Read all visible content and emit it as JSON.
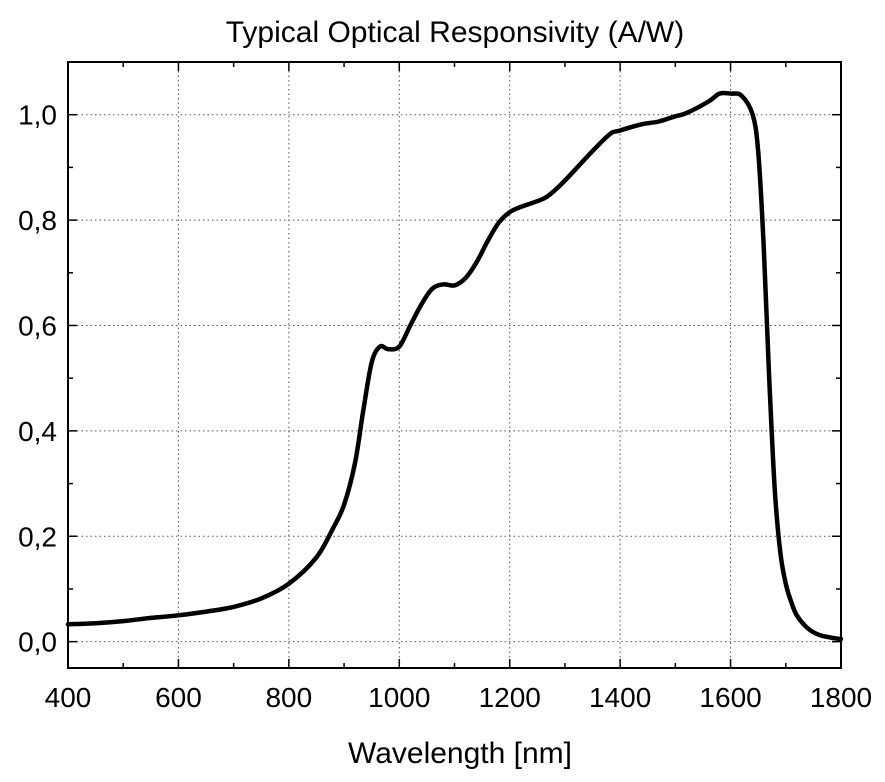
{
  "chart_data": {
    "type": "line",
    "title": "Typical Optical Responsivity (A/W)",
    "xlabel": "Wavelength [nm]",
    "ylabel": "",
    "xlim": [
      400,
      1800
    ],
    "ylim": [
      -0.05,
      1.1
    ],
    "xticks": [
      400,
      600,
      800,
      1000,
      1200,
      1400,
      1600,
      1800
    ],
    "xtick_labels": [
      "400",
      "600",
      "800",
      "1000",
      "1200",
      "1400",
      "1600",
      "1800"
    ],
    "yticks": [
      0.0,
      0.2,
      0.4,
      0.6,
      0.8,
      1.0
    ],
    "ytick_labels": [
      "0,0",
      "0,2",
      "0,4",
      "0,6",
      "0,8",
      "1,0"
    ],
    "grid": true,
    "line_color": "#000000",
    "series": [
      {
        "x": [
          400,
          450,
          500,
          550,
          600,
          650,
          700,
          750,
          800,
          850,
          880,
          900,
          920,
          935,
          950,
          965,
          980,
          1000,
          1020,
          1040,
          1060,
          1080,
          1100,
          1120,
          1140,
          1160,
          1180,
          1200,
          1220,
          1260,
          1280,
          1300,
          1340,
          1380,
          1400,
          1440,
          1470,
          1500,
          1520,
          1560,
          1580,
          1600,
          1620,
          1640,
          1650,
          1660,
          1670,
          1680,
          1690,
          1700,
          1710,
          1720,
          1740,
          1760,
          1780,
          1800
        ],
        "y": [
          0.033,
          0.035,
          0.039,
          0.045,
          0.05,
          0.057,
          0.066,
          0.082,
          0.11,
          0.16,
          0.215,
          0.26,
          0.34,
          0.44,
          0.53,
          0.56,
          0.555,
          0.56,
          0.6,
          0.64,
          0.67,
          0.678,
          0.676,
          0.69,
          0.72,
          0.76,
          0.795,
          0.815,
          0.825,
          0.84,
          0.855,
          0.875,
          0.92,
          0.962,
          0.97,
          0.982,
          0.987,
          0.997,
          1.003,
          1.025,
          1.04,
          1.04,
          1.036,
          1.0,
          0.93,
          0.75,
          0.5,
          0.29,
          0.17,
          0.11,
          0.075,
          0.05,
          0.025,
          0.013,
          0.008,
          0.005
        ]
      }
    ]
  }
}
